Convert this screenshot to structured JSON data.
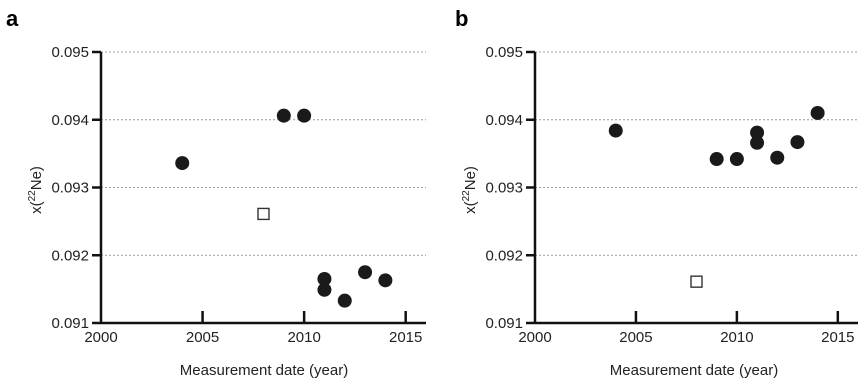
{
  "colors": {
    "marker_filled": "#1a1a1a",
    "marker_open_stroke": "#333333",
    "grid": "#999999",
    "axis": "#111111"
  },
  "chart_data": [
    {
      "type": "scatter",
      "panel_label": "a",
      "xlabel": "Measurement date (year)",
      "ylabel_prefix": "x(",
      "ylabel_superscript": "22",
      "ylabel_suffix": "Ne)",
      "xlim": [
        2000,
        2016
      ],
      "ylim": [
        0.091,
        0.095
      ],
      "x_ticks": [
        2000,
        2005,
        2010,
        2015
      ],
      "y_ticks": [
        0.091,
        0.092,
        0.093,
        0.094,
        0.095
      ],
      "y_tick_labels": [
        "0.091",
        "0.092",
        "0.093",
        "0.094",
        "0.095"
      ],
      "y_grid": true,
      "series": [
        {
          "marker": "filled-circle",
          "points": [
            {
              "x": 2004,
              "y": 0.09336
            },
            {
              "x": 2009,
              "y": 0.09406
            },
            {
              "x": 2010,
              "y": 0.09406
            },
            {
              "x": 2011,
              "y": 0.09165
            },
            {
              "x": 2011,
              "y": 0.09149
            },
            {
              "x": 2012,
              "y": 0.09133
            },
            {
              "x": 2013,
              "y": 0.09175
            },
            {
              "x": 2014,
              "y": 0.09163
            }
          ]
        },
        {
          "marker": "open-square",
          "points": [
            {
              "x": 2008,
              "y": 0.09261
            }
          ]
        }
      ]
    },
    {
      "type": "scatter",
      "panel_label": "b",
      "xlabel": "Measurement date (year)",
      "ylabel_prefix": "x(",
      "ylabel_superscript": "22",
      "ylabel_suffix": "Ne)",
      "xlim": [
        2000,
        2016
      ],
      "ylim": [
        0.091,
        0.095
      ],
      "x_ticks": [
        2000,
        2005,
        2010,
        2015
      ],
      "y_ticks": [
        0.091,
        0.092,
        0.093,
        0.094,
        0.095
      ],
      "y_tick_labels": [
        "0.091",
        "0.092",
        "0.093",
        "0.094",
        "0.095"
      ],
      "y_grid": true,
      "series": [
        {
          "marker": "filled-circle",
          "points": [
            {
              "x": 2004,
              "y": 0.09384
            },
            {
              "x": 2009,
              "y": 0.09342
            },
            {
              "x": 2010,
              "y": 0.09342
            },
            {
              "x": 2011,
              "y": 0.09381
            },
            {
              "x": 2011,
              "y": 0.09366
            },
            {
              "x": 2012,
              "y": 0.09344
            },
            {
              "x": 2013,
              "y": 0.09367
            },
            {
              "x": 2014,
              "y": 0.0941
            }
          ]
        },
        {
          "marker": "open-square",
          "points": [
            {
              "x": 2008,
              "y": 0.09161
            }
          ]
        }
      ]
    }
  ]
}
